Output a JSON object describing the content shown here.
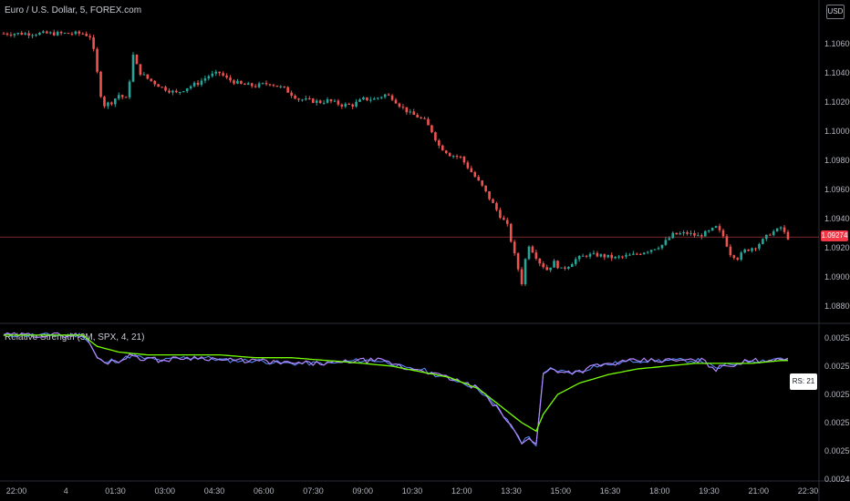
{
  "header": {
    "main_title": "Euro / U.S. Dollar, 5, FOREX.com",
    "indicator_title": "Relative Strength (3M, SPX, 4, 21)",
    "currency_button": "USD",
    "last_price": "1.09274",
    "rs_label": "RS: 21"
  },
  "colors": {
    "background": "#000000",
    "up_candle": "#26a69a",
    "down_candle": "#ef5350",
    "rs_line": "#b388ff",
    "rs_fast": "#5b8cff",
    "rs_ma": "#76ff03",
    "price_line": "#ef5350"
  },
  "chart_data": [
    {
      "type": "candlestick",
      "title": "Euro / U.S. Dollar, 5, FOREX.com",
      "x_tick_labels": [
        "22:00",
        "4",
        "01:30",
        "03:00",
        "04:30",
        "06:00",
        "07:30",
        "09:00",
        "10:30",
        "12:00",
        "13:30",
        "15:00",
        "16:30",
        "18:00",
        "19:30",
        "21:00",
        "22:30"
      ],
      "y_tick_labels": [
        "1.10600",
        "1.10400",
        "1.10200",
        "1.10000",
        "1.09800",
        "1.09600",
        "1.09400",
        "1.09200",
        "1.09000",
        "1.08800"
      ],
      "ylim": [
        1.0875,
        1.108
      ],
      "last_price": 1.09274,
      "close_path": [
        [
          0,
          1.1067
        ],
        [
          22,
          1.1067
        ],
        [
          24,
          1.1065
        ],
        [
          25,
          1.1055
        ],
        [
          26,
          1.104
        ],
        [
          27,
          1.1025
        ],
        [
          28,
          1.1018
        ],
        [
          30,
          1.102
        ],
        [
          32,
          1.1025
        ],
        [
          34,
          1.1022
        ],
        [
          35,
          1.1035
        ],
        [
          36,
          1.1052
        ],
        [
          37,
          1.1045
        ],
        [
          38,
          1.104
        ],
        [
          40,
          1.1036
        ],
        [
          44,
          1.103
        ],
        [
          48,
          1.1026
        ],
        [
          51,
          1.103
        ],
        [
          54,
          1.1033
        ],
        [
          57,
          1.1038
        ],
        [
          60,
          1.104
        ],
        [
          62,
          1.1036
        ],
        [
          66,
          1.1032
        ],
        [
          70,
          1.1031
        ],
        [
          74,
          1.1033
        ],
        [
          78,
          1.1029
        ],
        [
          82,
          1.1022
        ],
        [
          85,
          1.1021
        ],
        [
          88,
          1.102
        ],
        [
          90,
          1.1021
        ],
        [
          94,
          1.1018
        ],
        [
          97,
          1.1018
        ],
        [
          100,
          1.1022
        ],
        [
          103,
          1.1022
        ],
        [
          106,
          1.1025
        ],
        [
          108,
          1.1023
        ],
        [
          110,
          1.1018
        ],
        [
          113,
          1.1012
        ],
        [
          115,
          1.101
        ],
        [
          117,
          1.1007
        ],
        [
          119,
          1.1
        ],
        [
          121,
          1.099
        ],
        [
          124,
          1.0984
        ],
        [
          127,
          1.0982
        ],
        [
          130,
          1.0972
        ],
        [
          133,
          1.0962
        ],
        [
          136,
          1.095
        ],
        [
          138,
          1.0942
        ],
        [
          140,
          1.0935
        ],
        [
          142,
          1.0915
        ],
        [
          144,
          1.0896
        ],
        [
          145,
          1.0912
        ],
        [
          146,
          1.0922
        ],
        [
          147,
          1.0918
        ],
        [
          149,
          1.091
        ],
        [
          151,
          1.0905
        ],
        [
          153,
          1.091
        ],
        [
          155,
          1.0905
        ],
        [
          157,
          1.0908
        ],
        [
          159,
          1.0912
        ],
        [
          162,
          1.0915
        ],
        [
          165,
          1.0915
        ],
        [
          170,
          1.0913
        ],
        [
          175,
          1.0915
        ],
        [
          180,
          1.0919
        ],
        [
          183,
          1.0922
        ],
        [
          186,
          1.0929
        ],
        [
          190,
          1.093
        ],
        [
          193,
          1.0928
        ],
        [
          196,
          1.0931
        ],
        [
          198,
          1.0934
        ],
        [
          200,
          1.0928
        ],
        [
          202,
          1.0916
        ],
        [
          204,
          1.0913
        ],
        [
          206,
          1.0918
        ],
        [
          209,
          1.0921
        ],
        [
          211,
          1.0925
        ],
        [
          213,
          1.093
        ],
        [
          215,
          1.0932
        ],
        [
          216,
          1.0934
        ],
        [
          217,
          1.093
        ],
        [
          218,
          1.0927
        ]
      ]
    },
    {
      "type": "line",
      "title": "Relative Strength (3M, SPX, 4, 21)",
      "y_tick_labels": [
        "0.00254",
        "0.00253",
        "0.00252",
        "0.00251",
        "0.00250",
        "0.00249"
      ],
      "ylim": [
        0.002489,
        0.002547
      ],
      "series": [
        {
          "name": "",
          "values_path": [
            [
              0,
              0.002541
            ],
            [
              22,
              0.002541
            ],
            [
              24,
              0.002538
            ],
            [
              26,
              0.002533
            ],
            [
              28,
              0.002531
            ],
            [
              30,
              0.002532
            ],
            [
              32,
              0.002532
            ],
            [
              34,
              0.002533
            ],
            [
              36,
              0.002534
            ],
            [
              38,
              0.002533
            ],
            [
              44,
              0.002532
            ],
            [
              50,
              0.002533
            ],
            [
              56,
              0.002533
            ],
            [
              62,
              0.002532
            ],
            [
              70,
              0.002532
            ],
            [
              78,
              0.002531
            ],
            [
              86,
              0.002531
            ],
            [
              92,
              0.002531
            ],
            [
              98,
              0.002532
            ],
            [
              104,
              0.002532
            ],
            [
              108,
              0.002531
            ],
            [
              112,
              0.002529
            ],
            [
              116,
              0.002529
            ],
            [
              120,
              0.002527
            ],
            [
              126,
              0.002525
            ],
            [
              132,
              0.002522
            ],
            [
              138,
              0.002514
            ],
            [
              142,
              0.002507
            ],
            [
              144,
              0.002503
            ],
            [
              146,
              0.002505
            ],
            [
              148,
              0.002502
            ],
            [
              150,
              0.002527
            ],
            [
              152,
              0.002529
            ],
            [
              156,
              0.002528
            ],
            [
              160,
              0.002528
            ],
            [
              164,
              0.00253
            ],
            [
              170,
              0.002531
            ],
            [
              176,
              0.002532
            ],
            [
              182,
              0.002532
            ],
            [
              188,
              0.002532
            ],
            [
              194,
              0.002532
            ],
            [
              198,
              0.002529
            ],
            [
              200,
              0.00253
            ],
            [
              204,
              0.002531
            ],
            [
              208,
              0.002532
            ],
            [
              212,
              0.002532
            ],
            [
              216,
              0.002533
            ],
            [
              218,
              0.002532
            ]
          ]
        },
        {
          "name": "",
          "values_path": [
            [
              0,
              0.002541
            ],
            [
              22,
              0.002541
            ],
            [
              26,
              0.002537
            ],
            [
              32,
              0.002535
            ],
            [
              40,
              0.002534
            ],
            [
              50,
              0.002534
            ],
            [
              60,
              0.002534
            ],
            [
              70,
              0.002533
            ],
            [
              80,
              0.002533
            ],
            [
              90,
              0.002532
            ],
            [
              100,
              0.002531
            ],
            [
              108,
              0.00253
            ],
            [
              116,
              0.002528
            ],
            [
              124,
              0.002526
            ],
            [
              132,
              0.002522
            ],
            [
              138,
              0.002516
            ],
            [
              144,
              0.00251
            ],
            [
              148,
              0.002507
            ],
            [
              150,
              0.002513
            ],
            [
              154,
              0.00252
            ],
            [
              160,
              0.002524
            ],
            [
              168,
              0.002527
            ],
            [
              176,
              0.002529
            ],
            [
              184,
              0.00253
            ],
            [
              192,
              0.002531
            ],
            [
              200,
              0.002531
            ],
            [
              208,
              0.002531
            ],
            [
              216,
              0.002532
            ],
            [
              218,
              0.002532
            ]
          ]
        }
      ]
    }
  ]
}
